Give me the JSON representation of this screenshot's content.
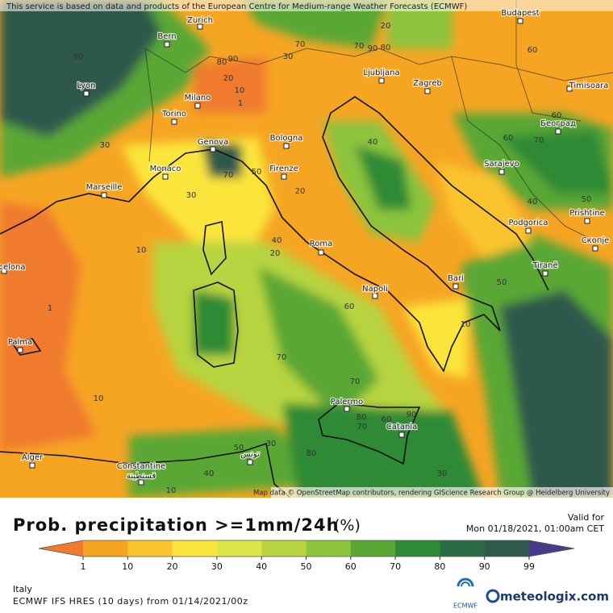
{
  "map": {
    "attribution": "This service is based on data and products of the European Centre for Medium-range Weather Forecasts (ECMWF)",
    "credit": "Map data © OpenStreetMap contributors, rendering GIScience Research Group @ Heidelberg University",
    "cities": [
      "Bern",
      "Zurich",
      "Lyon",
      "Milano",
      "Torino",
      "Genova",
      "Monaco",
      "Marseille",
      "Bologna",
      "Firenze",
      "Roma",
      "Napoli",
      "Bari",
      "Palermo",
      "Catania",
      "Ljubljana",
      "Zagreb",
      "Budapest",
      "Timisoara",
      "Београд",
      "Sarajevo",
      "Podgorica",
      "Prishtine",
      "Скопје",
      "Tiranë",
      "Palma",
      "celona",
      "Alger",
      "Constantine",
      "قسنطينة",
      "تونس"
    ],
    "contour_labels": [
      70,
      30,
      20,
      10,
      80,
      90,
      1,
      80,
      90,
      60,
      20,
      70,
      50,
      30,
      40,
      10,
      20,
      40,
      60,
      70,
      60,
      40,
      50,
      50,
      10,
      1,
      10,
      60,
      70,
      70,
      80,
      60,
      90,
      80,
      50,
      30,
      30,
      40,
      20,
      70,
      90,
      30,
      70,
      10
    ]
  },
  "legend": {
    "title": "Prob. precipitation >=1mm/24h",
    "unit": "(%)",
    "ticks": [
      1,
      10,
      20,
      30,
      40,
      50,
      60,
      70,
      80,
      90,
      99
    ],
    "colors": [
      "#f07a2e",
      "#f6a523",
      "#fbc42e",
      "#fbe53a",
      "#dde447",
      "#b8d43f",
      "#8cc43e",
      "#5aa735",
      "#2f8a36",
      "#2a6d44",
      "#2f594c",
      "#4a3a8a"
    ]
  },
  "valid": {
    "label": "Valid for",
    "date": "Mon 01/18/2021, 01:00am CET"
  },
  "region": "Italy",
  "model": "ECMWF IFS HRES (10 days) from 01/14/2021/00z",
  "logos": {
    "ecmwf": "ECMWF",
    "meteologix": "meteologix.com"
  }
}
